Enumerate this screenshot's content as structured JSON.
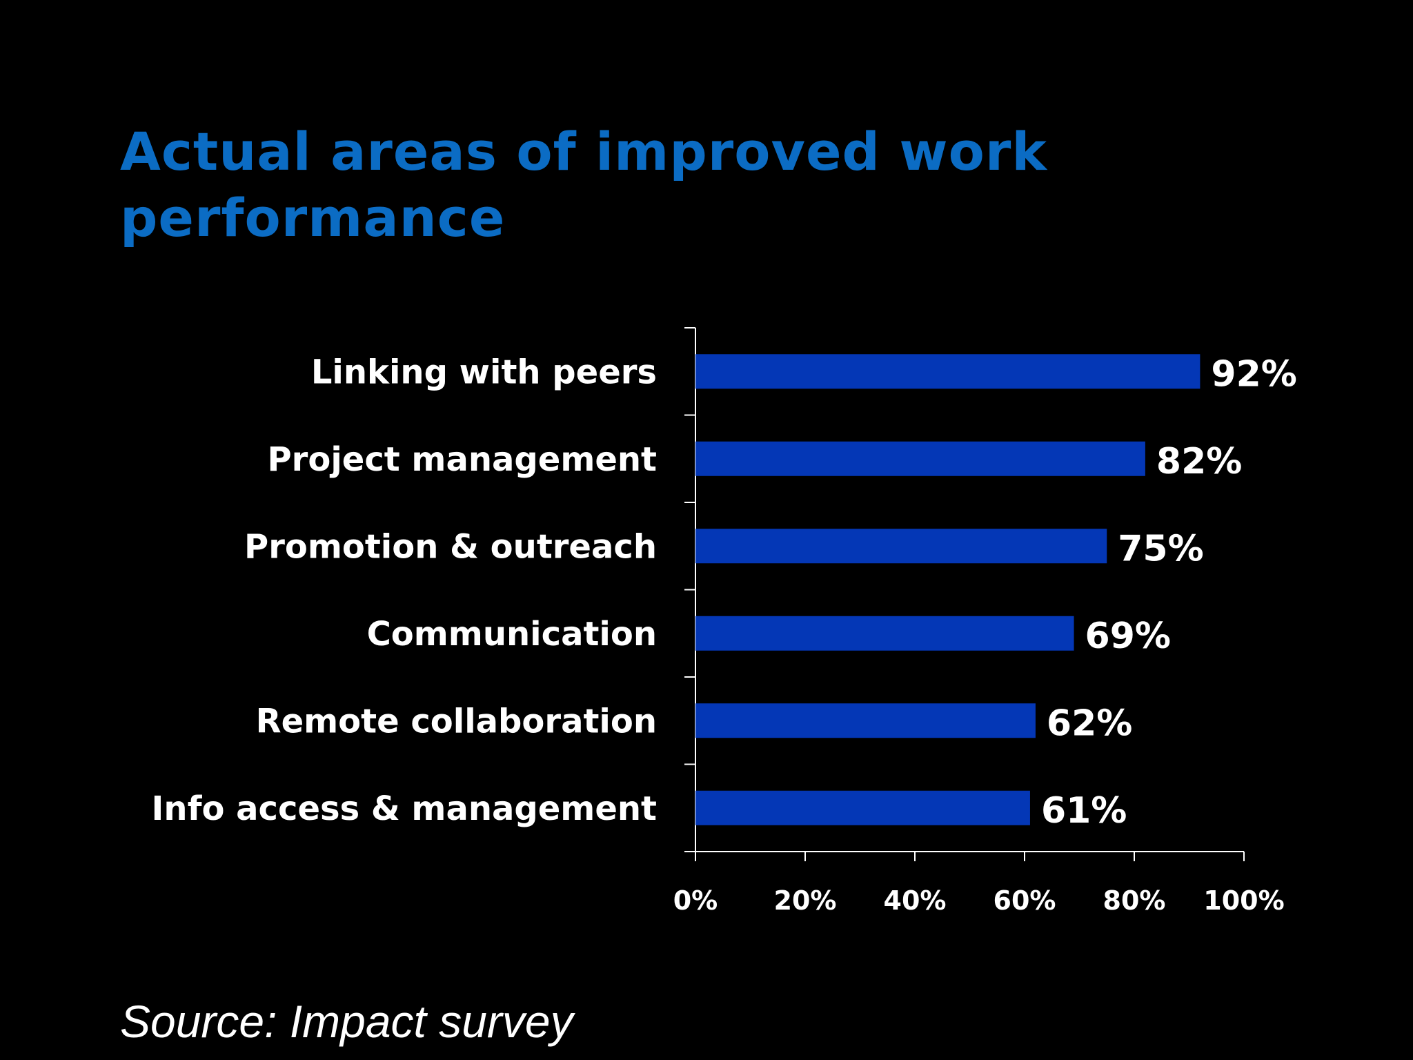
{
  "title": "Actual areas of improved work performance",
  "source": "Source: Impact survey",
  "colors": {
    "background": "#000000",
    "title": "#0b6cc4",
    "bar": "#0437b6",
    "text": "#ffffff",
    "axis": "#ffffff"
  },
  "chart_data": {
    "type": "bar",
    "orientation": "horizontal",
    "categories": [
      "Linking with peers",
      "Project management",
      "Promotion & outreach",
      "Communication",
      "Remote collaboration",
      "Info access & management"
    ],
    "values": [
      92,
      82,
      75,
      69,
      62,
      61
    ],
    "value_labels": [
      "92%",
      "82%",
      "75%",
      "69%",
      "62%",
      "61%"
    ],
    "xlim": [
      0,
      100
    ],
    "x_ticks": [
      0,
      20,
      40,
      60,
      80,
      100
    ],
    "x_tick_labels": [
      "0%",
      "20%",
      "40%",
      "60%",
      "80%",
      "100%"
    ],
    "grid": false,
    "legend": "none"
  }
}
